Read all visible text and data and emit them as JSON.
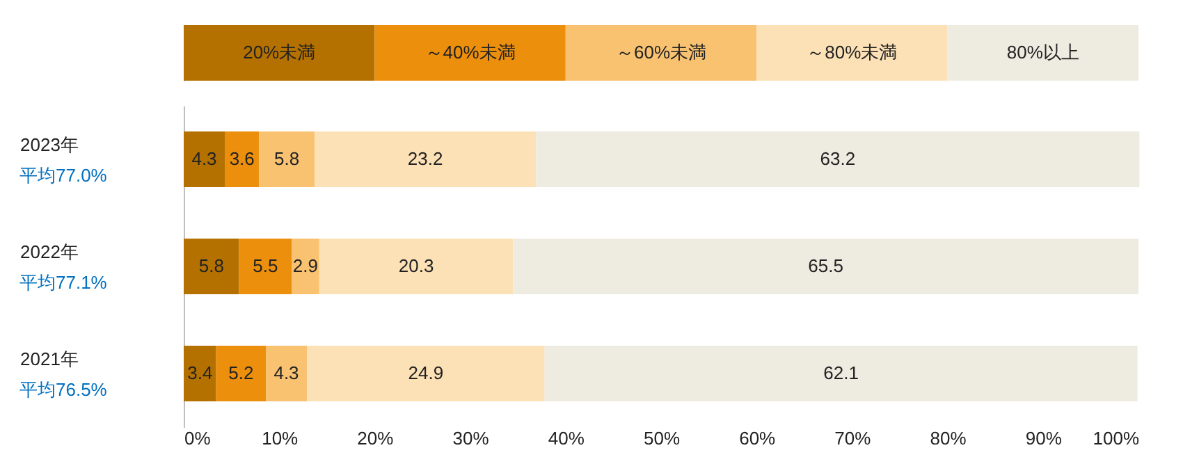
{
  "chart_data": {
    "type": "bar",
    "orientation": "horizontal",
    "stacked": true,
    "data_labels": true,
    "legend": "top",
    "grid": false,
    "categories": [
      "2023年",
      "2022年",
      "2021年"
    ],
    "series": [
      {
        "name": "20%未満",
        "color": "#b47100",
        "values": [
          4.3,
          5.8,
          3.4
        ]
      },
      {
        "name": "～40%未満",
        "color": "#ec8f0c",
        "values": [
          3.6,
          5.5,
          5.2
        ]
      },
      {
        "name": "～60%未満",
        "color": "#f9c271",
        "values": [
          5.8,
          2.9,
          4.3
        ]
      },
      {
        "name": "～80%未満",
        "color": "#fde1b6",
        "values": [
          23.2,
          20.3,
          24.9
        ]
      },
      {
        "name": "80%以上",
        "color": "#eeebe0",
        "values": [
          63.2,
          65.5,
          62.1
        ]
      }
    ],
    "xlim": [
      0,
      100
    ],
    "xticks": [
      {
        "value": 0,
        "label": "0%"
      },
      {
        "value": 10,
        "label": "10%"
      },
      {
        "value": 20,
        "label": "20%"
      },
      {
        "value": 30,
        "label": "30%"
      },
      {
        "value": 40,
        "label": "40%"
      },
      {
        "value": 50,
        "label": "50%"
      },
      {
        "value": 60,
        "label": "60%"
      },
      {
        "value": 70,
        "label": "70%"
      },
      {
        "value": 80,
        "label": "80%"
      },
      {
        "value": 90,
        "label": "90%"
      },
      {
        "value": 100,
        "label": "100%"
      }
    ],
    "annotations": [
      "平均77.0%",
      "平均77.1%",
      "平均76.5%"
    ]
  }
}
